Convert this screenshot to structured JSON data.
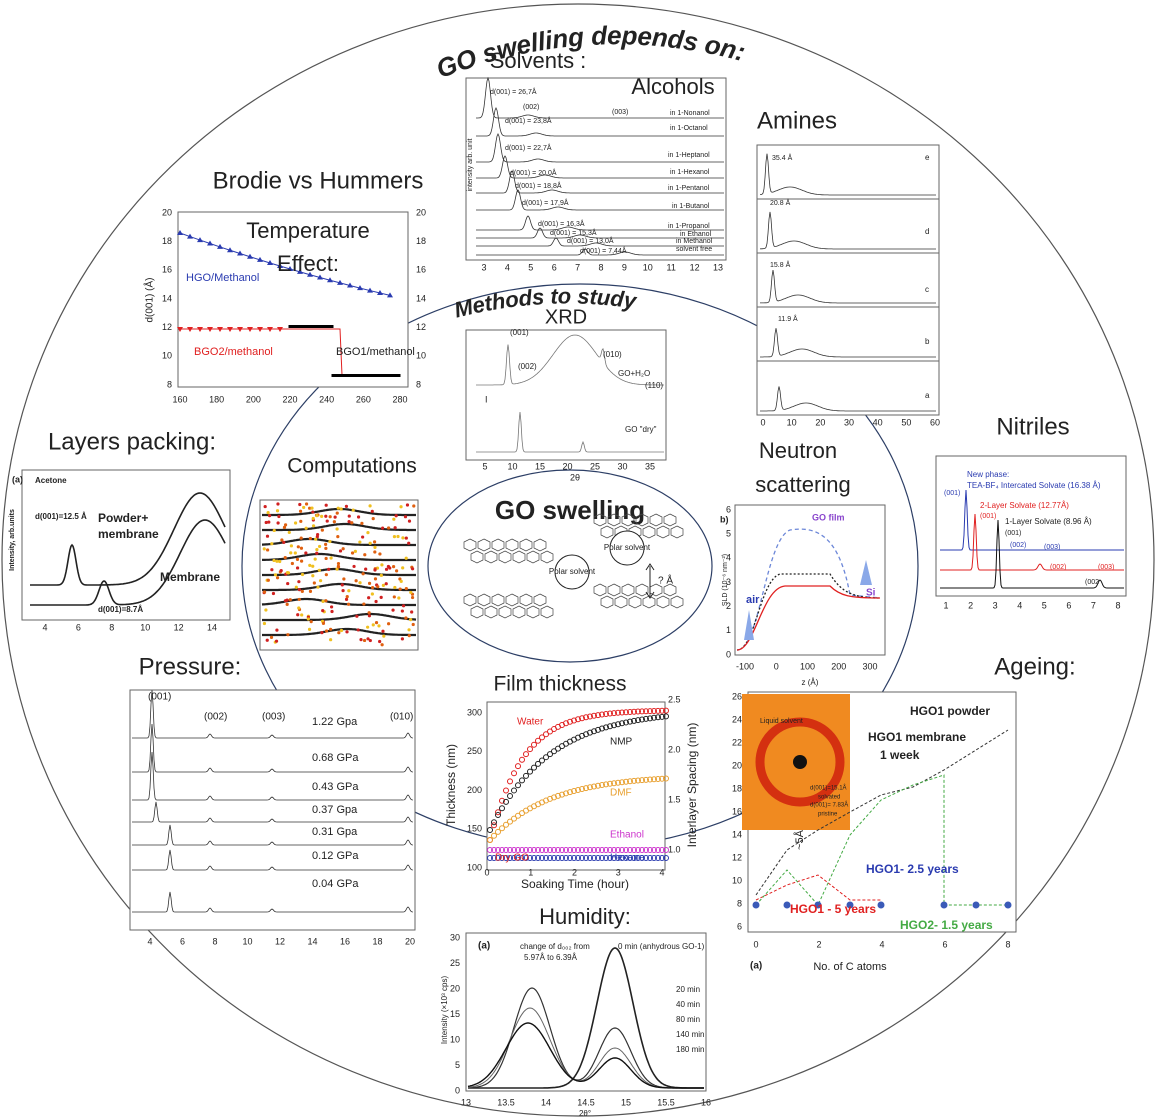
{
  "title": "GO swelling depends on:",
  "methods_title": "Methods to study",
  "center": {
    "title": "GO swelling",
    "labels": [
      "Polar solvent",
      "Polar solvent",
      "? Å"
    ]
  },
  "panels": [
    {
      "headings": [
        "Solvents :",
        "Alcohols"
      ],
      "annotations": [
        "d(001) = 26,7Å",
        "(002)",
        "(003)",
        "in 1-Nonanol",
        "d(001) = 23,8Å",
        "in 1-Octanol",
        "d(001) = 22,7Å",
        "in 1-Heptanol",
        "d(001) = 20,0Å",
        "in 1-Hexanol",
        "d(001) = 18,8Å",
        "in 1-Pentanol",
        "d(001) = 17,9Å",
        "in 1-Butanol",
        "d(001) = 16,3Å",
        "in 1-Propanol",
        "d(001) = 15,3Å",
        "in Ethanol",
        "d(001) = 13,0Å",
        "in Methanol",
        "d(001) = 7,44Å",
        "solvent free",
        "intensity arb. unit"
      ],
      "xticks": [
        "3",
        "4",
        "5",
        "6",
        "7",
        "8",
        "9",
        "10",
        "11",
        "12",
        "13"
      ]
    },
    {
      "headings": [
        "Amines"
      ],
      "annotations": [
        "35.4 Å",
        "e",
        "20.8 Å",
        "d",
        "15.8 Å",
        "c",
        "11.9 Å",
        "b",
        "a"
      ],
      "xticks": [
        "0",
        "10",
        "20",
        "30",
        "40",
        "50",
        "60"
      ]
    },
    {
      "headings": [
        "Brodie vs Hummers"
      ],
      "annotations": [
        "Temperature",
        "Effect:",
        "HGO/Methanol",
        "BGO2/methanol",
        "BGO1/methanol",
        "d(001) (Å)"
      ],
      "xticks": [
        "160",
        "180",
        "200",
        "220",
        "240",
        "260",
        "280"
      ],
      "yticks": [
        "8",
        "10",
        "12",
        "14",
        "16",
        "18",
        "20"
      ],
      "y2ticks": [
        "8",
        "10",
        "12",
        "14",
        "16",
        "18",
        "20"
      ]
    },
    {
      "headings": [
        "XRD"
      ],
      "annotations": [
        "(001)",
        "(002)",
        "(010)",
        "GO+H₂O",
        "(110)",
        "GO \"dry\"",
        "I",
        "2θ"
      ],
      "xticks": [
        "5",
        "10",
        "15",
        "20",
        "25",
        "30",
        "35"
      ]
    },
    {
      "headings": [
        "Layers packing:"
      ],
      "annotations": [
        "(a)",
        "Acetone",
        "d(001)=12.5 Å",
        "Powder+",
        "membrane",
        "Membrane",
        "d(001)=8.7Å",
        "Intensity, arb.units"
      ],
      "xticks": [
        "4",
        "6",
        "8",
        "10",
        "12",
        "14"
      ]
    },
    {
      "headings": [
        "Computations"
      ],
      "annotations": []
    },
    {
      "headings": [
        "Nitriles"
      ],
      "annotations": [
        "New phase:",
        "TEA-BF₄ Intercated Solvate (16.38 Å)",
        "(001)",
        "2-Layer Solvate (12.77Å)",
        "(001)",
        "1-Layer Solvate (8.96 Å)",
        "(001)",
        "(002)",
        "(003)",
        "(002)",
        "(003)",
        "(002"
      ],
      "xticks": [
        "1",
        "2",
        "3",
        "4",
        "5",
        "6",
        "7",
        "8"
      ]
    },
    {
      "headings": [
        "Neutron",
        "scattering"
      ],
      "annotations": [
        "b)",
        "GO film",
        "air",
        "Si",
        "SLD (10⁻⁶ nm⁻²)",
        "z (Å)"
      ],
      "xticks": [
        "-100",
        "0",
        "100",
        "200",
        "300"
      ],
      "yticks": [
        "0",
        "1",
        "2",
        "3",
        "4",
        "5",
        "6"
      ]
    },
    {
      "headings": [
        "Pressure:"
      ],
      "annotations": [
        "(001)",
        "(002)",
        "(003)",
        "(010)",
        "1.22 Gpa",
        "0.68 GPa",
        "0.43 GPa",
        "0.37 Gpa",
        "0.31 Gpa",
        "0.12 GPa",
        "0.04 GPa"
      ],
      "xticks": [
        "4",
        "6",
        "8",
        "10",
        "12",
        "14",
        "16",
        "18",
        "20"
      ]
    },
    {
      "headings": [
        "Film thickness"
      ],
      "annotations": [
        "Water",
        "NMP",
        "DMF",
        "Ethanol",
        "Hexane",
        "Dry GO",
        "Thickness (nm)",
        "Interlayer Spacing (nm)",
        "Soaking Time (hour)"
      ],
      "xticks": [
        "0",
        "1",
        "2",
        "3",
        "4"
      ],
      "yticks": [
        "100",
        "150",
        "200",
        "250",
        "300"
      ],
      "y2ticks": [
        "1.0",
        "1.5",
        "2.0",
        "2.5"
      ]
    },
    {
      "headings": [
        "Ageing:"
      ],
      "annotations": [
        "Liquid solvent",
        "d(001)=15.1Å",
        "solvated",
        "d(001)= 7.83Å",
        "pristine",
        "HGO1 powder",
        "HGO1 membrane",
        "1 week",
        "~5Å",
        "HGO1- 2.5 years",
        "HGO1  - 5 years",
        "HGO2- 1.5 years",
        "(a)",
        "No. of C atoms"
      ],
      "xticks": [
        "0",
        "2",
        "4",
        "6",
        "8"
      ],
      "yticks": [
        "6",
        "8",
        "10",
        "12",
        "14",
        "16",
        "18",
        "20",
        "22",
        "24",
        "26"
      ]
    },
    {
      "headings": [
        "Humidity:"
      ],
      "annotations": [
        "(a)",
        "change of d₀₀₂ from",
        "5.97Å to 6.39Å",
        "0 min (anhydrous GO-1)",
        "20 min",
        "40 min",
        "80 min",
        "140 min",
        "180 min",
        "Intensity (×10³ cps)",
        "2θ°"
      ],
      "xticks": [
        "13",
        "13.5",
        "14",
        "14.5",
        "15",
        "15.5",
        "16"
      ],
      "yticks": [
        "0",
        "5",
        "10",
        "15",
        "20",
        "25",
        "30"
      ]
    }
  ]
}
